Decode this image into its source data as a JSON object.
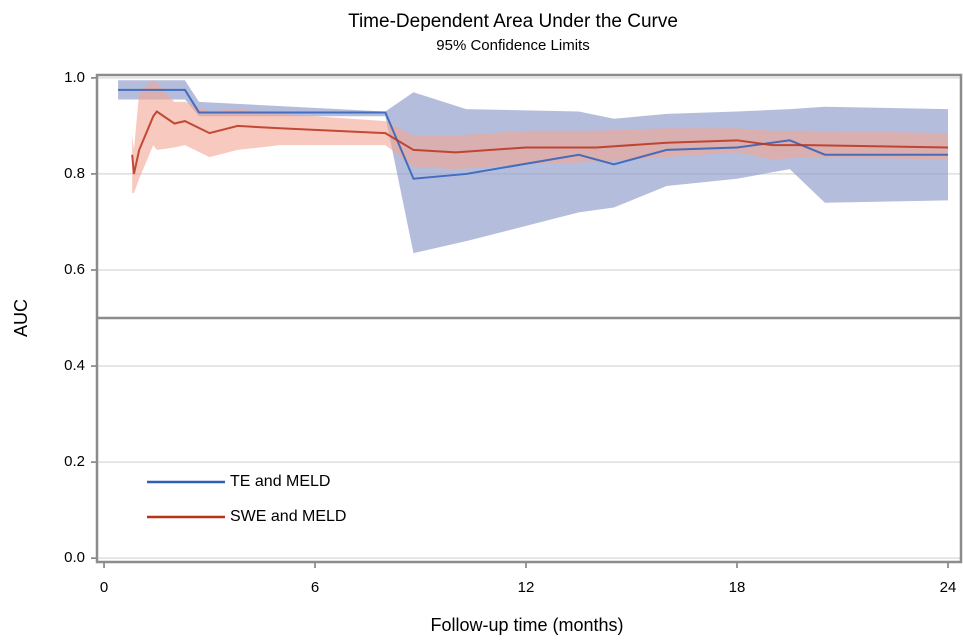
{
  "chart_data": {
    "type": "line",
    "title": "Time-Dependent Area Under the Curve",
    "subtitle": "95% Confidence Limits",
    "x_label": "Follow-up time (months)",
    "y_label": "AUC",
    "xlim": [
      -0.2,
      24.37
    ],
    "ylim": [
      -0.008,
      1.006
    ],
    "xticks": [
      0,
      6,
      12,
      18,
      24
    ],
    "yticks": [
      {
        "value": 0,
        "label": "0.0"
      },
      0.2,
      0.4,
      0.6,
      0.8,
      {
        "value": 1,
        "label": "1.0"
      }
    ],
    "grid": true,
    "reference_line": 0.5,
    "legend_position": "lower left",
    "series": [
      {
        "name": "TE and MELD",
        "color": "#2f5fb8",
        "band_color": "#8e9acb",
        "x": [
          0.4,
          2.3,
          2.7,
          8.0,
          8.8,
          10.3,
          13.5,
          14.5,
          16,
          18,
          19.5,
          20.5,
          24
        ],
        "values": [
          0.975,
          0.975,
          0.928,
          0.928,
          0.79,
          0.8,
          0.84,
          0.82,
          0.85,
          0.855,
          0.87,
          0.84,
          0.84
        ],
        "lower": [
          0.955,
          0.955,
          0.92,
          0.92,
          0.635,
          0.66,
          0.72,
          0.73,
          0.775,
          0.79,
          0.81,
          0.74,
          0.745
        ],
        "upper": [
          0.995,
          0.995,
          0.95,
          0.93,
          0.97,
          0.935,
          0.93,
          0.915,
          0.925,
          0.93,
          0.935,
          0.94,
          0.935
        ]
      },
      {
        "name": "SWE and MELD",
        "color": "#b8321c",
        "band_color": "#f4a592",
        "x": [
          0.8,
          0.85,
          1.0,
          1.4,
          1.5,
          2.0,
          2.3,
          3.0,
          3.8,
          5,
          8,
          8.8,
          10,
          12,
          14,
          16,
          18,
          19,
          20,
          24
        ],
        "values": [
          0.84,
          0.8,
          0.85,
          0.92,
          0.93,
          0.905,
          0.91,
          0.885,
          0.9,
          0.895,
          0.885,
          0.85,
          0.845,
          0.855,
          0.855,
          0.865,
          0.87,
          0.86,
          0.86,
          0.855
        ],
        "lower": [
          0.76,
          0.76,
          0.79,
          0.86,
          0.85,
          0.855,
          0.86,
          0.835,
          0.85,
          0.86,
          0.86,
          0.815,
          0.81,
          0.82,
          0.825,
          0.835,
          0.845,
          0.83,
          0.835,
          0.83
        ],
        "upper": [
          0.88,
          0.85,
          0.97,
          0.995,
          0.99,
          0.95,
          0.95,
          0.93,
          0.935,
          0.925,
          0.91,
          0.88,
          0.88,
          0.89,
          0.89,
          0.895,
          0.895,
          0.89,
          0.89,
          0.885
        ]
      }
    ]
  }
}
